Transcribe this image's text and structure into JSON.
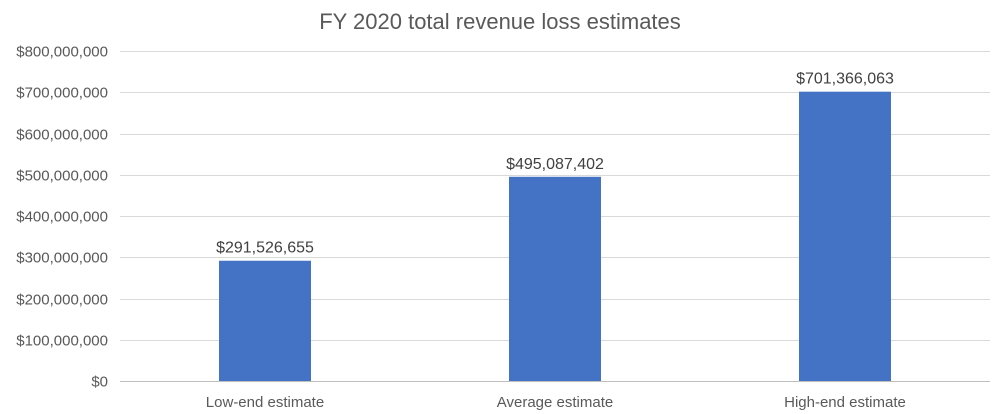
{
  "chart_data": {
    "type": "bar",
    "title": "FY 2020 total revenue loss estimates",
    "xlabel": "",
    "ylabel": "",
    "categories": [
      "Low-end estimate",
      "Average estimate",
      "High-end estimate"
    ],
    "values": [
      291526655,
      495087402,
      701366063
    ],
    "data_labels": [
      "$291,526,655",
      "$495,087,402",
      "$701,366,063"
    ],
    "ylim": [
      0,
      800000000
    ],
    "yticks": [
      0,
      100000000,
      200000000,
      300000000,
      400000000,
      500000000,
      600000000,
      700000000,
      800000000
    ],
    "ytick_labels": [
      "$0",
      "$100,000,000",
      "$200,000,000",
      "$300,000,000",
      "$400,000,000",
      "$500,000,000",
      "$600,000,000",
      "$700,000,000",
      "$800,000,000"
    ],
    "grid": true,
    "legend": "none",
    "bar_color": "#4472c4"
  }
}
